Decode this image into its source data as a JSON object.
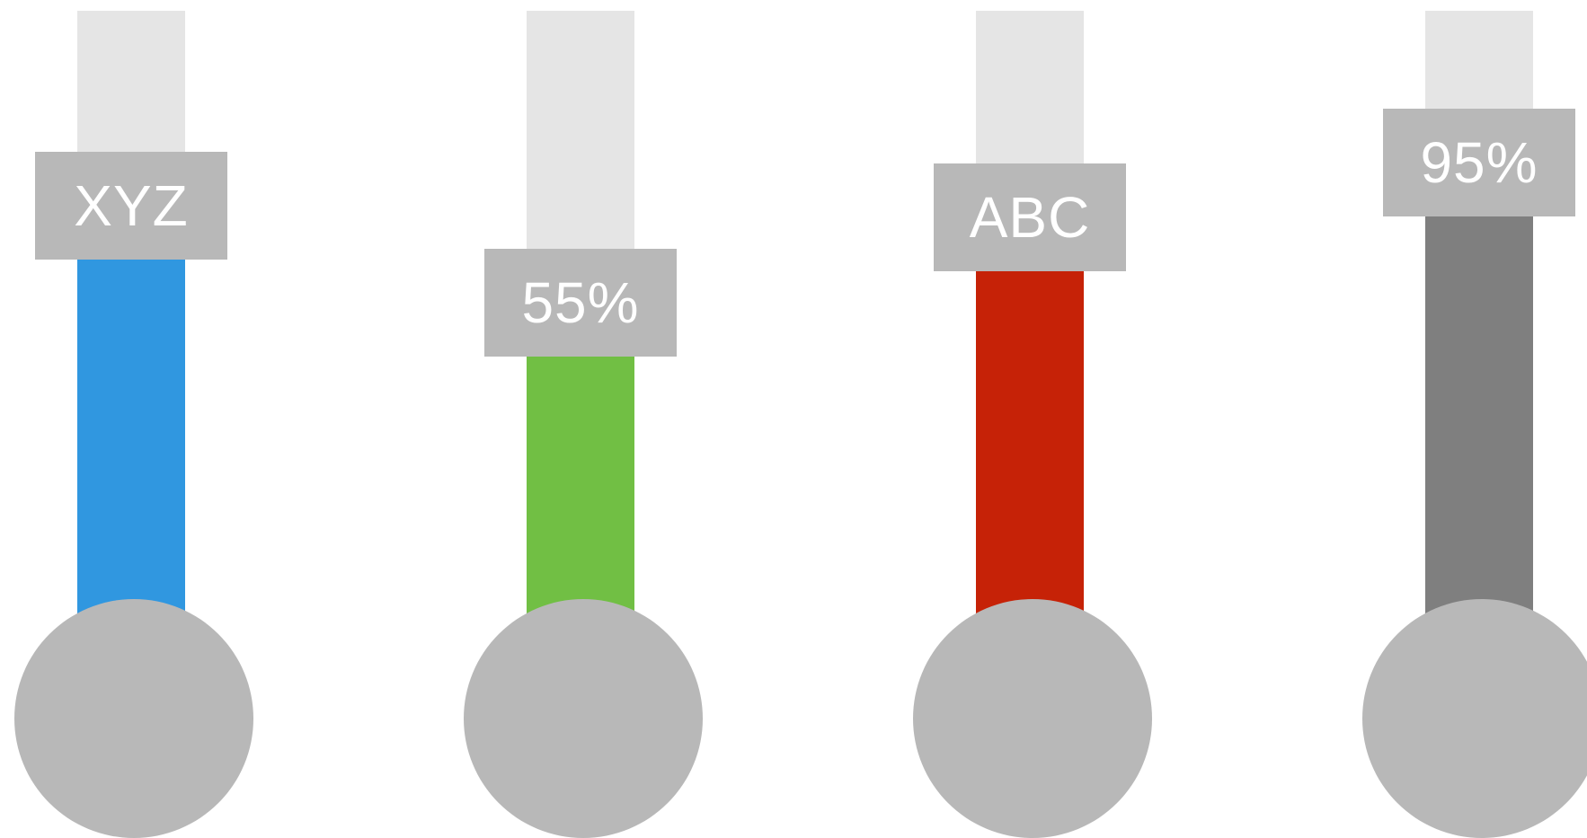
{
  "gauges": [
    {
      "label": "XYZ",
      "level": 0.76,
      "color": "#3097e0"
    },
    {
      "label": "55%",
      "level": 0.6,
      "color": "#71bf44"
    },
    {
      "label": "ABC",
      "level": 0.74,
      "color": "#c62207"
    },
    {
      "label": "95%",
      "level": 0.83,
      "color": "#7f7f7f"
    }
  ]
}
